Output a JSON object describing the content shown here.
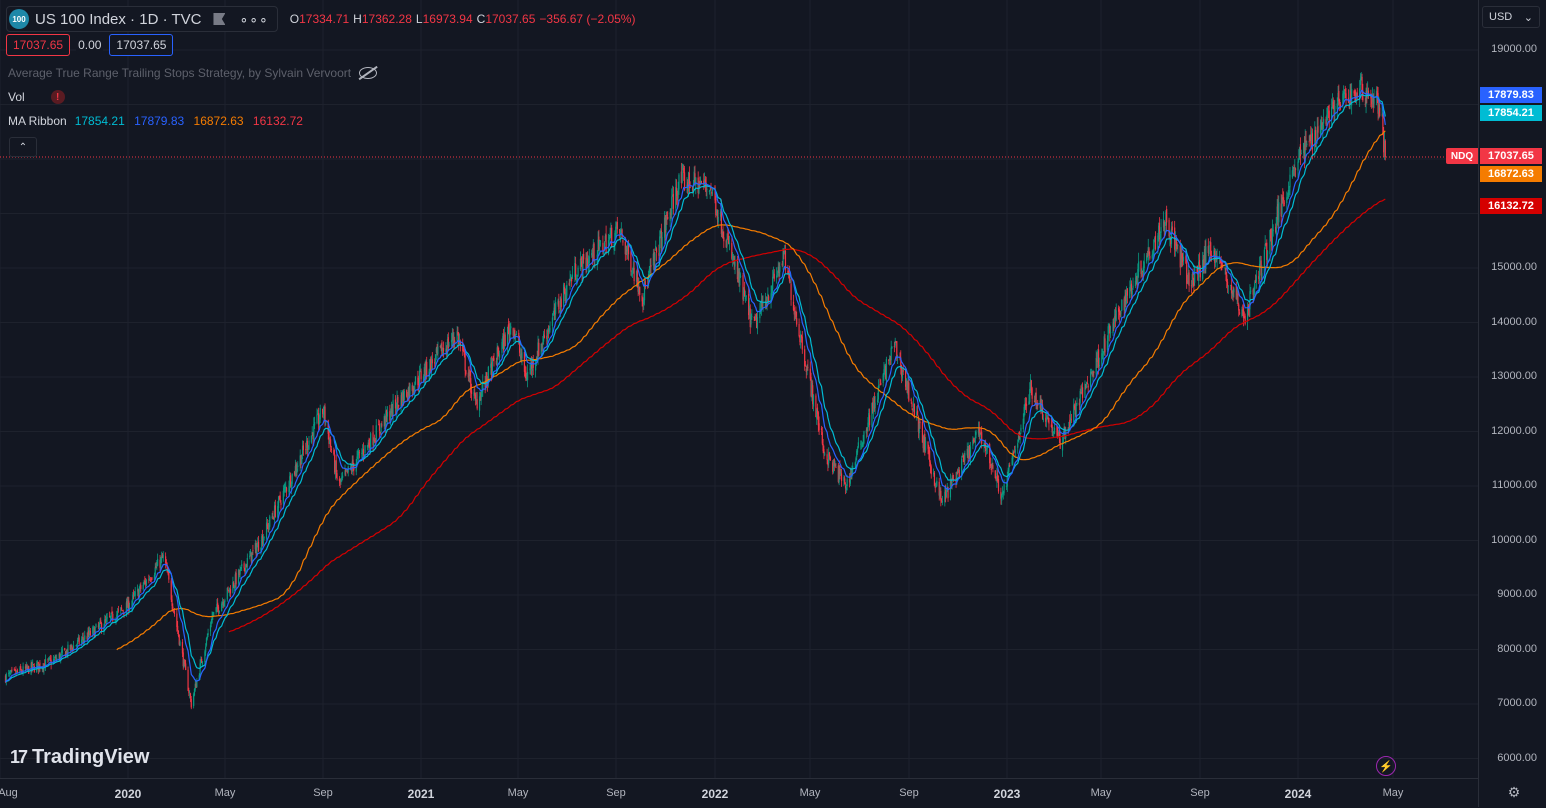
{
  "header": {
    "logo_text": "100",
    "symbol_title": "US 100 Index · 1D · TVC",
    "more": "∘∘∘",
    "ohlc": [
      {
        "k": "O",
        "v": "17334.71"
      },
      {
        "k": "H",
        "v": "17362.28"
      },
      {
        "k": "L",
        "v": "16973.94"
      },
      {
        "k": "C",
        "v": "17037.65"
      },
      {
        "k": "",
        "v": "−356.67 (−2.05%)"
      }
    ],
    "bid": "17037.65",
    "spread": "0.00",
    "ask": "17037.65"
  },
  "indicators": {
    "strategy": "Average True Range Trailing Stops Strategy, by Sylvain Vervoort",
    "vol": "Vol",
    "vol_warn": "!",
    "ma_name": "MA Ribbon",
    "ma_values": [
      "17854.21",
      "17879.83",
      "16872.63",
      "16132.72"
    ],
    "collapse": "⌃"
  },
  "yaxis": {
    "currency": "USD",
    "currency_arrow": "⌄",
    "ticks": [
      "19000.00",
      "15000.00",
      "14000.00",
      "13000.00",
      "12000.00",
      "11000.00",
      "10000.00",
      "9000.00",
      "8000.00",
      "7000.00",
      "6000.00"
    ],
    "labels": {
      "ma_fast": "17879.83",
      "ma_base": "17854.21",
      "last": "17037.65",
      "ma_slow": "16872.63",
      "ma_slowest": "16132.72",
      "ticker": "NDQ"
    }
  },
  "xaxis": {
    "ticks": [
      {
        "t": "Aug",
        "bold": false
      },
      {
        "t": "2020",
        "bold": true
      },
      {
        "t": "May",
        "bold": false
      },
      {
        "t": "Sep",
        "bold": false
      },
      {
        "t": "2021",
        "bold": true
      },
      {
        "t": "May",
        "bold": false
      },
      {
        "t": "Sep",
        "bold": false
      },
      {
        "t": "2022",
        "bold": true
      },
      {
        "t": "May",
        "bold": false
      },
      {
        "t": "Sep",
        "bold": false
      },
      {
        "t": "2023",
        "bold": true
      },
      {
        "t": "May",
        "bold": false
      },
      {
        "t": "Sep",
        "bold": false
      },
      {
        "t": "2024",
        "bold": true
      },
      {
        "t": "May",
        "bold": false
      }
    ]
  },
  "branding": {
    "mark": "17",
    "name": "TradingView"
  },
  "icons": {
    "lightning": "⚡",
    "settings": "⚙"
  },
  "colors": {
    "up": "#089981",
    "down": "#f23645",
    "ma_fast": "#2962ff",
    "ma_base": "#00bcd4",
    "ma_slow": "#f57c00",
    "ma_slowest": "#d50000"
  },
  "chart_data": {
    "type": "candlestick",
    "ylim": [
      5700,
      19600
    ],
    "close_anchors": [
      [
        "2019-08-01",
        7500
      ],
      [
        "2019-10-01",
        7800
      ],
      [
        "2020-01-01",
        8800
      ],
      [
        "2020-02-15",
        9700
      ],
      [
        "2020-03-20",
        7000
      ],
      [
        "2020-04-15",
        8600
      ],
      [
        "2020-06-15",
        10000
      ],
      [
        "2020-09-01",
        12400
      ],
      [
        "2020-09-20",
        11000
      ],
      [
        "2020-12-01",
        12500
      ],
      [
        "2021-02-15",
        13800
      ],
      [
        "2021-03-10",
        12500
      ],
      [
        "2021-04-25",
        14000
      ],
      [
        "2021-05-12",
        13000
      ],
      [
        "2021-07-10",
        14900
      ],
      [
        "2021-09-05",
        15700
      ],
      [
        "2021-10-05",
        14500
      ],
      [
        "2021-11-20",
        16600
      ],
      [
        "2021-12-28",
        16500
      ],
      [
        "2022-02-20",
        13900
      ],
      [
        "2022-03-30",
        15200
      ],
      [
        "2022-05-20",
        11600
      ],
      [
        "2022-06-16",
        11000
      ],
      [
        "2022-08-15",
        13600
      ],
      [
        "2022-10-13",
        10700
      ],
      [
        "2022-11-30",
        12000
      ],
      [
        "2022-12-28",
        10800
      ],
      [
        "2023-02-01",
        12800
      ],
      [
        "2023-03-10",
        11800
      ],
      [
        "2023-06-01",
        14500
      ],
      [
        "2023-07-19",
        15900
      ],
      [
        "2023-08-20",
        14700
      ],
      [
        "2023-09-15",
        15400
      ],
      [
        "2023-10-26",
        14100
      ],
      [
        "2023-12-28",
        16900
      ],
      [
        "2024-02-10",
        17900
      ],
      [
        "2024-03-21",
        18300
      ],
      [
        "2024-04-12",
        18000
      ],
      [
        "2024-04-19",
        17037.65
      ]
    ],
    "x_ticks": [
      "Aug",
      "2020",
      "May",
      "Sep",
      "2021",
      "May",
      "Sep",
      "2022",
      "May",
      "Sep",
      "2023",
      "May",
      "Sep",
      "2024",
      "May"
    ],
    "last": {
      "open": 17334.71,
      "high": 17362.28,
      "low": 16973.94,
      "close": 17037.65
    }
  }
}
